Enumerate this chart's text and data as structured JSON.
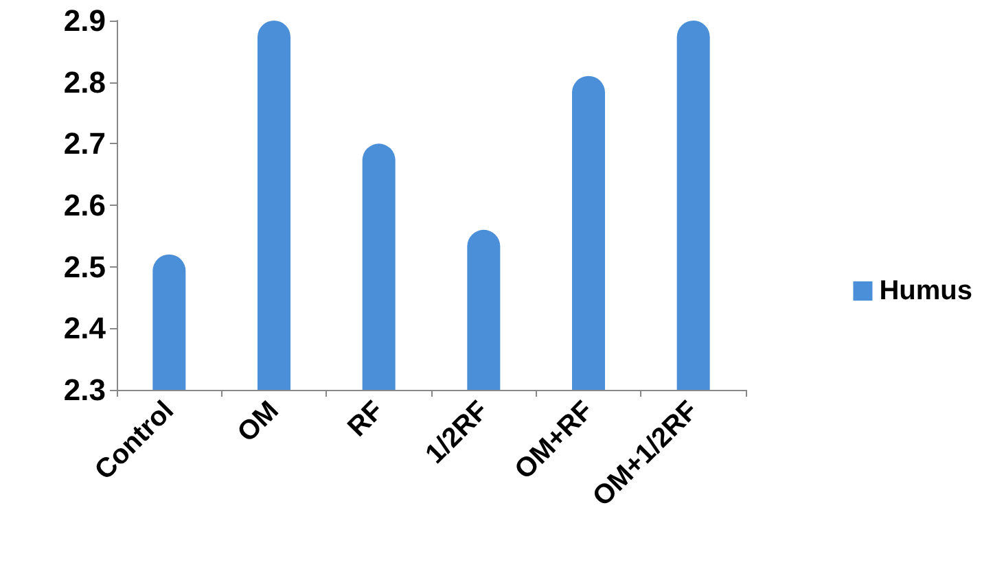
{
  "chart_data": {
    "type": "bar",
    "categories": [
      "Control",
      "OM",
      "RF",
      "1/2RF",
      "OM+RF",
      "OM+1/2RF"
    ],
    "series": [
      {
        "name": "Humus",
        "color": "#4a8fd8",
        "values": [
          2.52,
          2.9,
          2.7,
          2.56,
          2.81,
          2.9
        ]
      }
    ],
    "ylim": [
      2.3,
      2.9
    ],
    "yticks": [
      2.3,
      2.4,
      2.5,
      2.6,
      2.7,
      2.8,
      2.9
    ],
    "grid": false,
    "legend": "right"
  }
}
